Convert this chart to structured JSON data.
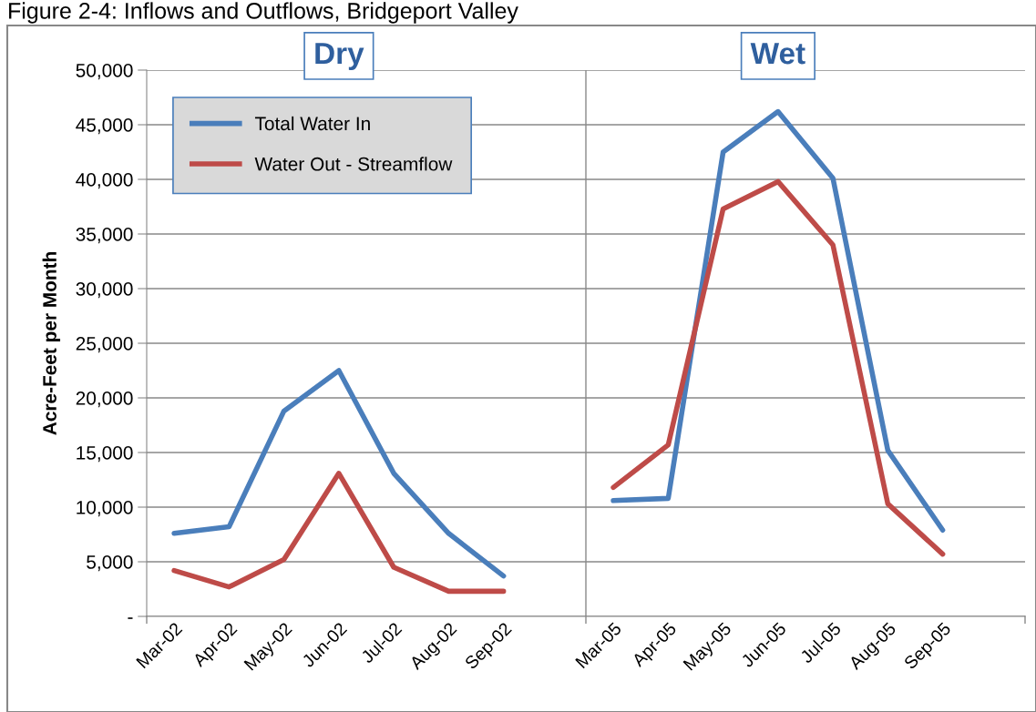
{
  "chart_data": {
    "type": "line",
    "title": "Figure 2-4: Inflows and Outflows, Bridgeport Valley",
    "ylabel": "Acre-Feet per Month",
    "categories": [
      "Mar-02",
      "Apr-02",
      "May-02",
      "Jun-02",
      "Jul-02",
      "Aug-02",
      "Sep-02",
      null,
      "Mar-05",
      "Apr-05",
      "May-05",
      "Jun-05",
      "Jul-05",
      "Aug-05",
      "Sep-05",
      null
    ],
    "series": [
      {
        "name": "Total Water In",
        "color": "#4a7ebb",
        "values": [
          7600,
          8200,
          18800,
          22500,
          13100,
          7600,
          3700,
          null,
          10600,
          10800,
          42500,
          46200,
          40100,
          15200,
          7900,
          null
        ]
      },
      {
        "name": "Water Out - Streamflow",
        "color": "#be4b48",
        "values": [
          4200,
          2700,
          5200,
          13100,
          4500,
          2300,
          2300,
          null,
          11800,
          15700,
          37300,
          39800,
          34000,
          10300,
          5700,
          null
        ]
      }
    ],
    "annotations": [
      "Dry",
      "Wet"
    ],
    "ylim": [
      0,
      50000
    ],
    "yticks": [
      {
        "value": 0,
        "label": "-"
      },
      {
        "value": 5000,
        "label": "5,000"
      },
      {
        "value": 10000,
        "label": "10,000"
      },
      {
        "value": 15000,
        "label": "15,000"
      },
      {
        "value": 20000,
        "label": "20,000"
      },
      {
        "value": 25000,
        "label": "25,000"
      },
      {
        "value": 30000,
        "label": "30,000"
      },
      {
        "value": 35000,
        "label": "35,000"
      },
      {
        "value": 40000,
        "label": "40,000"
      },
      {
        "value": 45000,
        "label": "45,000"
      },
      {
        "value": 50000,
        "label": "50,000"
      }
    ],
    "grid": true,
    "legend": "top left",
    "marker": "none",
    "line_style": "solid"
  }
}
